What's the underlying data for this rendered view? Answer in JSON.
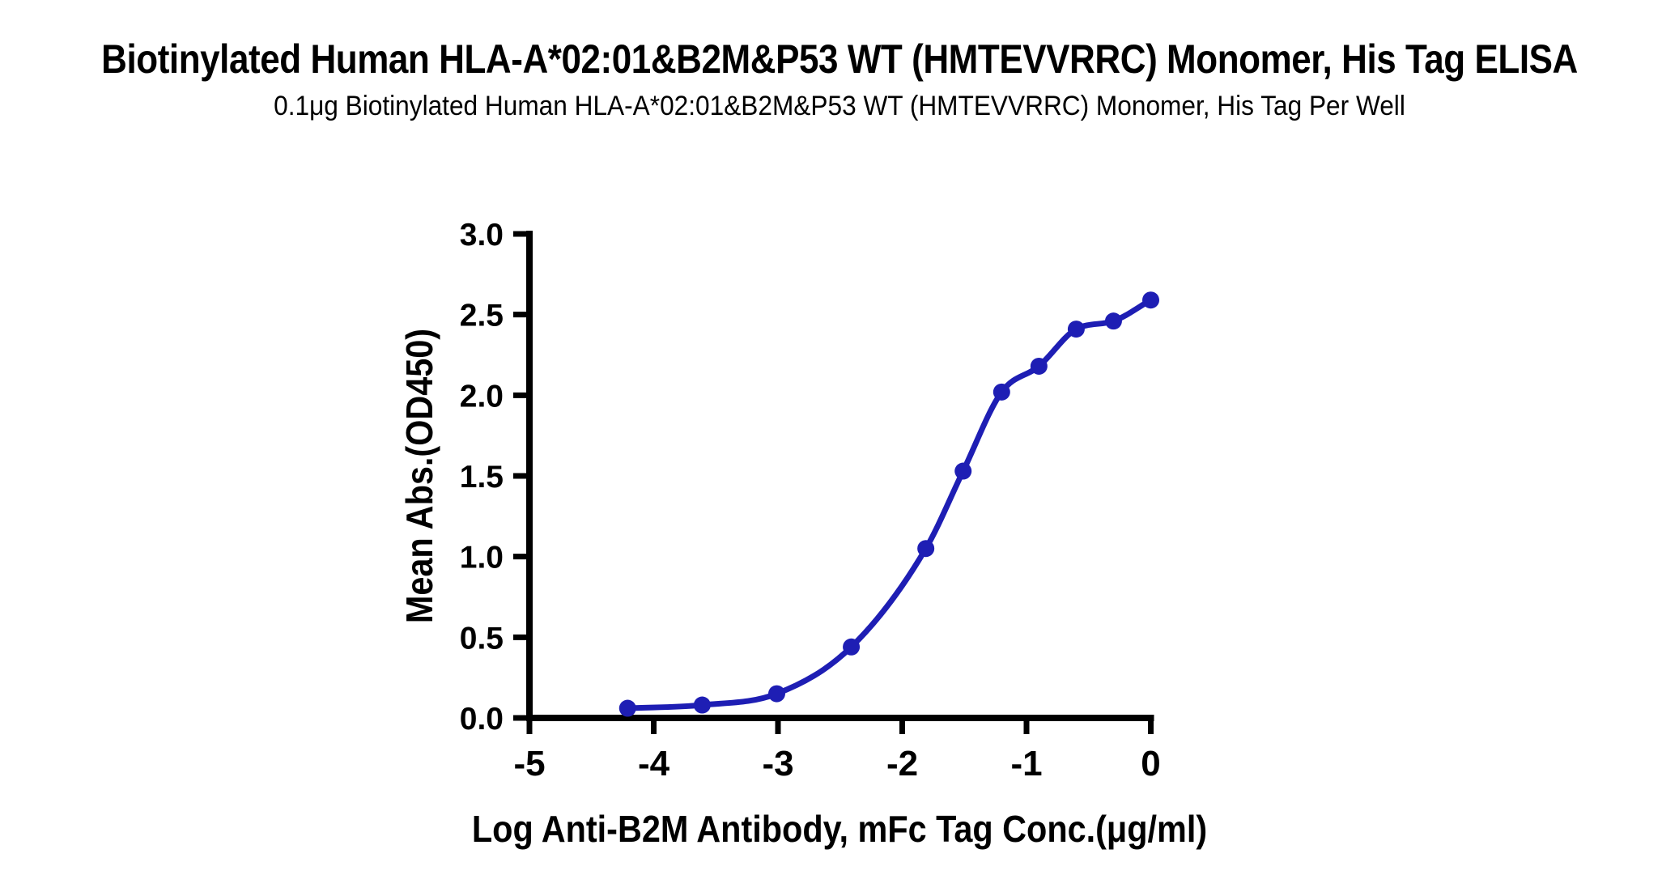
{
  "chart_data": {
    "type": "scatter",
    "title": "Biotinylated Human HLA-A*02:01&B2M&P53 WT (HMTEVVRRC) Monomer, His Tag ELISA",
    "subtitle": "0.1μg Biotinylated Human HLA-A*02:01&B2M&P53 WT (HMTEVVRRC) Monomer, His Tag Per Well",
    "xlabel": "Log  Anti-B2M Antibody, mFc Tag Conc.(μg/ml)",
    "ylabel": "Mean Abs.(OD450)",
    "xlim": [
      -5,
      0
    ],
    "ylim": [
      0,
      3
    ],
    "xticks": [
      -5,
      -4,
      -3,
      -2,
      -1,
      0
    ],
    "xtick_labels": [
      "-5",
      "-4",
      "-3",
      "-2",
      "-1",
      "0"
    ],
    "yticks": [
      0,
      0.5,
      1,
      1.5,
      2,
      2.5,
      3
    ],
    "ytick_labels": [
      "0.0",
      "0.5",
      "1.0",
      "1.5",
      "2.0",
      "2.5",
      "3.0"
    ],
    "grid": false,
    "legend_position": "none",
    "series": [
      {
        "marker": "circle",
        "line": "sigmoidal-fit",
        "color": "#1E1EB4",
        "x": [
          -4.21,
          -3.61,
          -3.01,
          -2.41,
          -1.81,
          -1.51,
          -1.2,
          -0.9,
          -0.6,
          -0.3,
          0.0
        ],
        "y": [
          0.06,
          0.08,
          0.15,
          0.44,
          1.05,
          1.53,
          2.02,
          2.18,
          2.41,
          2.46,
          2.59
        ]
      }
    ]
  },
  "colors": {
    "curve": "#1E1EB4",
    "text": "#000000",
    "background": "#FFFFFF"
  }
}
